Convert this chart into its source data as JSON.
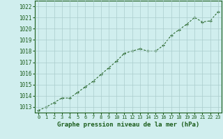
{
  "x": [
    0,
    1,
    2,
    3,
    4,
    5,
    6,
    7,
    8,
    9,
    10,
    11,
    12,
    13,
    14,
    15,
    16,
    17,
    18,
    19,
    20,
    21,
    22,
    23
  ],
  "y": [
    1012.7,
    1013.0,
    1013.4,
    1013.8,
    1013.8,
    1014.3,
    1014.8,
    1015.3,
    1015.9,
    1016.5,
    1017.1,
    1017.8,
    1018.0,
    1018.2,
    1018.0,
    1018.0,
    1018.5,
    1019.4,
    1019.9,
    1020.4,
    1021.0,
    1020.6,
    1020.7,
    1021.5
  ],
  "ylim": [
    1012.5,
    1022.5
  ],
  "yticks": [
    1013,
    1014,
    1015,
    1016,
    1017,
    1018,
    1019,
    1020,
    1021,
    1022
  ],
  "xlim": [
    -0.5,
    23.5
  ],
  "xticks": [
    0,
    1,
    2,
    3,
    4,
    5,
    6,
    7,
    8,
    9,
    10,
    11,
    12,
    13,
    14,
    15,
    16,
    17,
    18,
    19,
    20,
    21,
    22,
    23
  ],
  "line_color": "#1a5c1a",
  "marker": "+",
  "bg_color": "#d0eeee",
  "grid_color": "#aacccc",
  "xlabel": "Graphe pression niveau de la mer (hPa)",
  "xlabel_color": "#1a5c1a",
  "tick_color": "#1a5c1a",
  "border_color": "#1a5c1a",
  "font_family": "monospace"
}
